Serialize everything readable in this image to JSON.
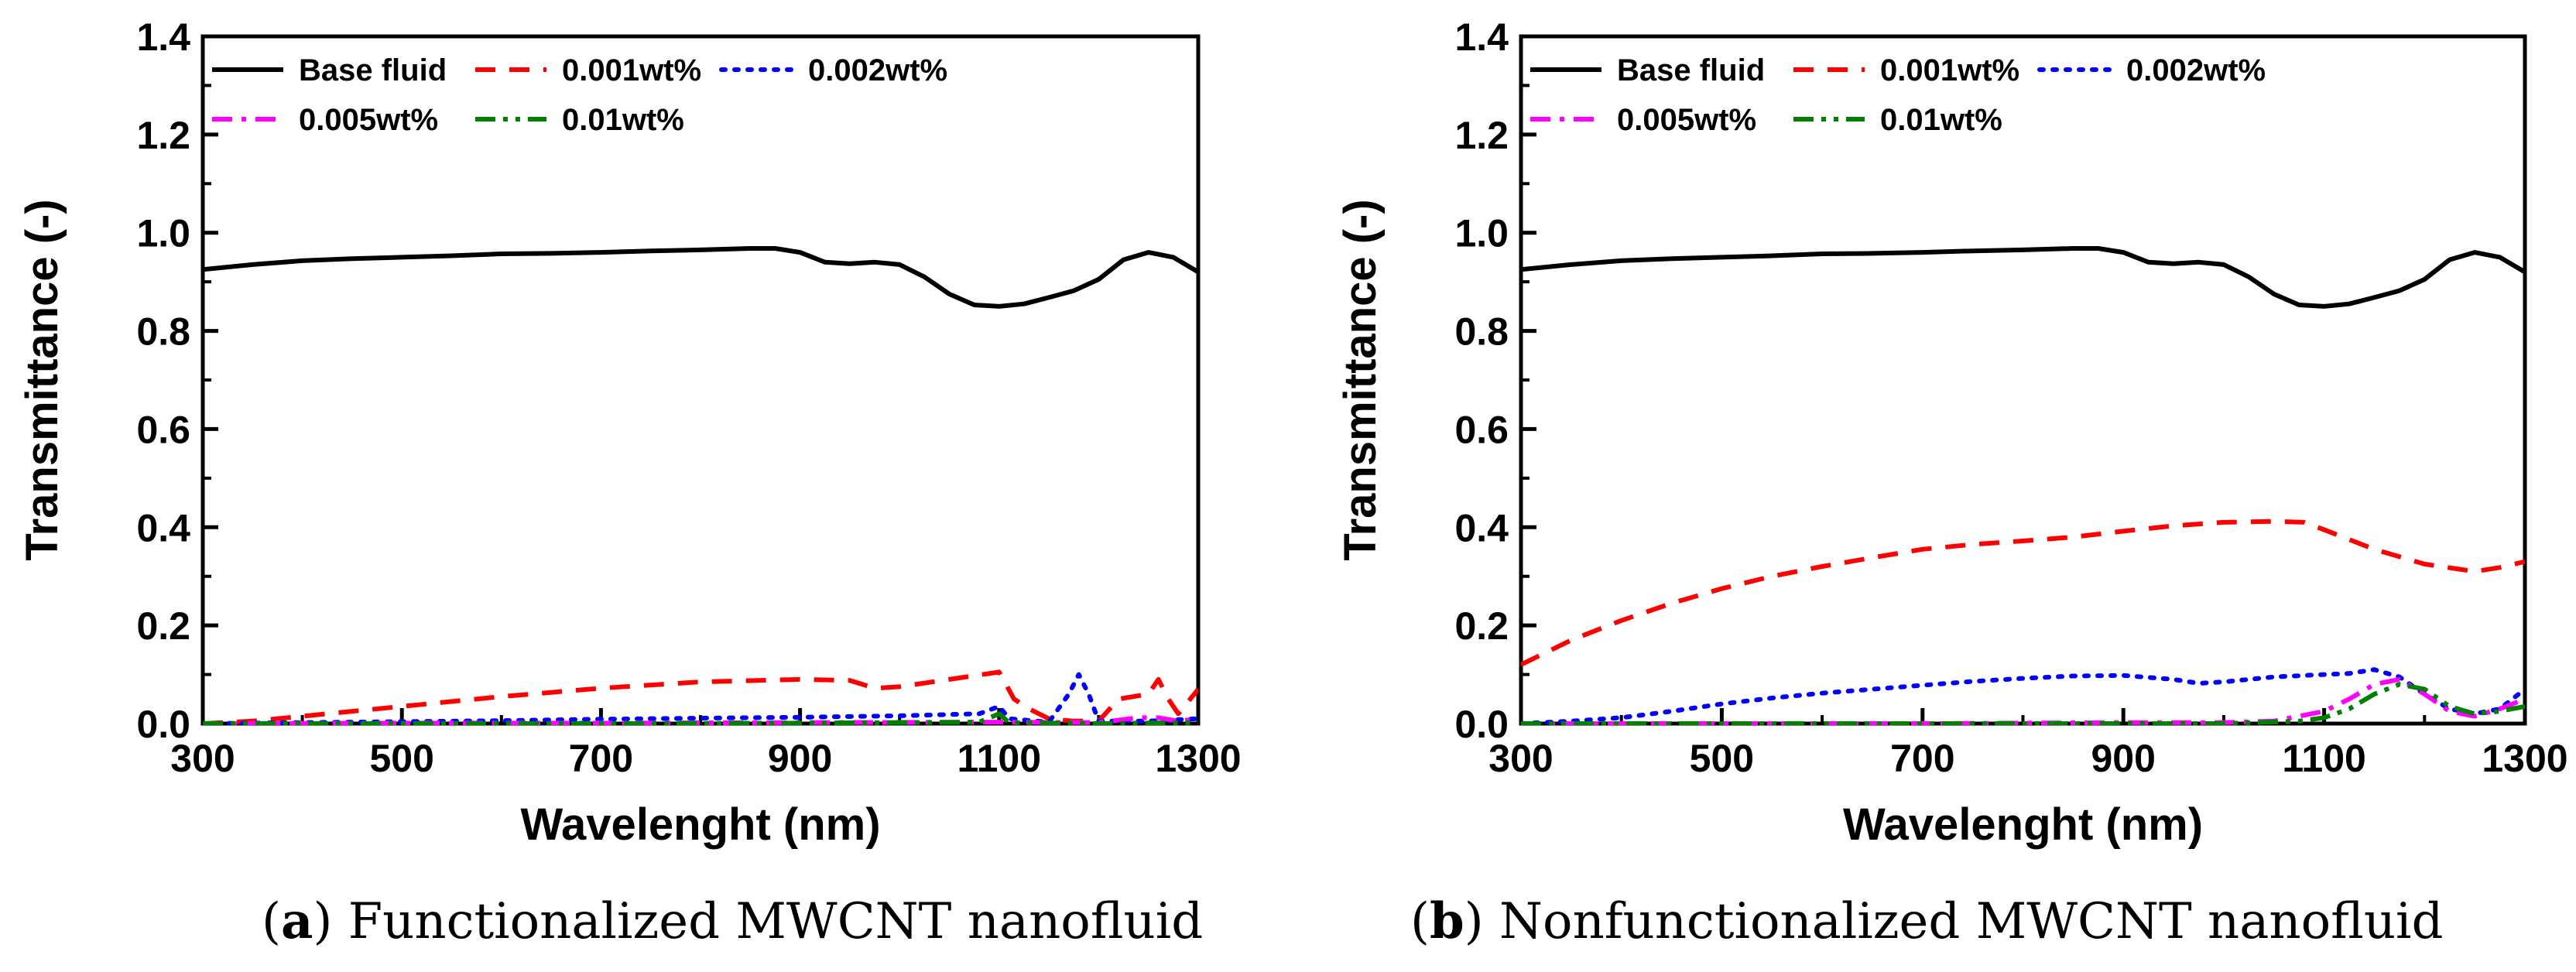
{
  "chart_data": [
    {
      "type": "line",
      "panel_letter": "a",
      "caption": "Functionalized MWCNT nanofluid",
      "xlabel": "Wavelenght (nm)",
      "ylabel": "Transmittance (-)",
      "xlim": [
        300,
        1300
      ],
      "ylim": [
        0,
        1.4
      ],
      "xticks": [
        "300",
        "500",
        "700",
        "900",
        "1100",
        "1300"
      ],
      "yticks": [
        "0.0",
        "0.2",
        "0.4",
        "0.6",
        "0.8",
        "1.0",
        "1.2",
        "1.4"
      ],
      "legend_location": "top-left",
      "series": [
        {
          "name": "Base fluid",
          "color": "#000000",
          "dash": "solid",
          "x": [
            300,
            350,
            400,
            450,
            500,
            550,
            600,
            650,
            700,
            750,
            800,
            850,
            875,
            900,
            925,
            950,
            975,
            1000,
            1025,
            1050,
            1075,
            1100,
            1125,
            1150,
            1175,
            1200,
            1225,
            1250,
            1275,
            1300
          ],
          "y": [
            0.925,
            0.935,
            0.943,
            0.947,
            0.95,
            0.953,
            0.957,
            0.958,
            0.96,
            0.963,
            0.965,
            0.968,
            0.968,
            0.96,
            0.94,
            0.937,
            0.94,
            0.935,
            0.91,
            0.875,
            0.853,
            0.85,
            0.855,
            0.868,
            0.882,
            0.905,
            0.945,
            0.96,
            0.95,
            0.92
          ]
        },
        {
          "name": "0.001wt%",
          "color": "#ff0000",
          "dash": "dash",
          "x": [
            300,
            350,
            400,
            500,
            600,
            700,
            800,
            900,
            950,
            975,
            1000,
            1050,
            1100,
            1115,
            1130,
            1150,
            1175,
            1200,
            1220,
            1250,
            1260,
            1270,
            1280,
            1300
          ],
          "y": [
            0.0,
            0.005,
            0.015,
            0.035,
            0.055,
            0.072,
            0.085,
            0.09,
            0.088,
            0.072,
            0.075,
            0.09,
            0.105,
            0.05,
            0.03,
            0.01,
            0.005,
            0.005,
            0.05,
            0.06,
            0.09,
            0.05,
            0.02,
            0.07
          ]
        },
        {
          "name": "0.002wt%",
          "color": "#0000ff",
          "dash": "dot",
          "x": [
            300,
            400,
            500,
            600,
            700,
            800,
            900,
            1000,
            1080,
            1100,
            1110,
            1150,
            1170,
            1180,
            1190,
            1200,
            1250,
            1300
          ],
          "y": [
            0.0,
            0.002,
            0.004,
            0.006,
            0.009,
            0.011,
            0.013,
            0.016,
            0.02,
            0.035,
            0.01,
            0.003,
            0.06,
            0.1,
            0.06,
            0.005,
            0.005,
            0.01
          ]
        },
        {
          "name": "0.005wt%",
          "color": "#ff00ff",
          "dash": "dashdot",
          "x": [
            300,
            500,
            700,
            900,
            1100,
            1200,
            1240,
            1260,
            1280,
            1300
          ],
          "y": [
            0.0,
            0.001,
            0.001,
            0.002,
            0.003,
            0.002,
            0.012,
            0.012,
            0.005,
            0.01
          ]
        },
        {
          "name": "0.01wt%",
          "color": "#008000",
          "dash": "dashdotdot",
          "x": [
            300,
            500,
            700,
            900,
            1080,
            1100,
            1110,
            1200,
            1300
          ],
          "y": [
            0.0,
            0.0,
            0.0,
            0.001,
            0.003,
            0.02,
            0.002,
            0.0,
            0.002
          ]
        }
      ]
    },
    {
      "type": "line",
      "panel_letter": "b",
      "caption": "Nonfunctionalized MWCNT nanofluid",
      "xlabel": "Wavelenght (nm)",
      "ylabel": "Transmittance (-)",
      "xlim": [
        300,
        1300
      ],
      "ylim": [
        0,
        1.4
      ],
      "xticks": [
        "300",
        "500",
        "700",
        "900",
        "1100",
        "1300"
      ],
      "yticks": [
        "0.0",
        "0.2",
        "0.4",
        "0.6",
        "0.8",
        "1.0",
        "1.2",
        "1.4"
      ],
      "legend_location": "top-left",
      "series": [
        {
          "name": "Base fluid",
          "color": "#000000",
          "dash": "solid",
          "x": [
            300,
            350,
            400,
            450,
            500,
            550,
            600,
            650,
            700,
            750,
            800,
            850,
            875,
            900,
            925,
            950,
            975,
            1000,
            1025,
            1050,
            1075,
            1100,
            1125,
            1150,
            1175,
            1200,
            1225,
            1250,
            1275,
            1300
          ],
          "y": [
            0.925,
            0.935,
            0.943,
            0.947,
            0.95,
            0.953,
            0.957,
            0.958,
            0.96,
            0.963,
            0.965,
            0.968,
            0.968,
            0.96,
            0.94,
            0.937,
            0.94,
            0.935,
            0.91,
            0.875,
            0.853,
            0.85,
            0.855,
            0.868,
            0.882,
            0.905,
            0.945,
            0.96,
            0.95,
            0.92
          ]
        },
        {
          "name": "0.001wt%",
          "color": "#ff0000",
          "dash": "dash",
          "x": [
            300,
            350,
            400,
            450,
            500,
            550,
            600,
            650,
            700,
            750,
            800,
            850,
            900,
            950,
            1000,
            1050,
            1080,
            1100,
            1150,
            1200,
            1250,
            1275,
            1300
          ],
          "y": [
            0.12,
            0.17,
            0.21,
            0.245,
            0.275,
            0.3,
            0.32,
            0.338,
            0.355,
            0.365,
            0.372,
            0.38,
            0.392,
            0.403,
            0.41,
            0.412,
            0.41,
            0.395,
            0.355,
            0.325,
            0.31,
            0.318,
            0.33
          ]
        },
        {
          "name": "0.002wt%",
          "color": "#0000ff",
          "dash": "dot",
          "x": [
            300,
            350,
            400,
            450,
            500,
            550,
            600,
            650,
            700,
            750,
            800,
            850,
            900,
            950,
            975,
            1000,
            1050,
            1100,
            1125,
            1150,
            1175,
            1200,
            1225,
            1250,
            1275,
            1300
          ],
          "y": [
            0.0,
            0.005,
            0.012,
            0.025,
            0.04,
            0.052,
            0.062,
            0.07,
            0.078,
            0.086,
            0.092,
            0.097,
            0.098,
            0.09,
            0.082,
            0.085,
            0.095,
            0.1,
            0.102,
            0.11,
            0.095,
            0.06,
            0.03,
            0.02,
            0.03,
            0.07
          ]
        },
        {
          "name": "0.005wt%",
          "color": "#ff00ff",
          "dash": "dashdot",
          "x": [
            300,
            500,
            700,
            900,
            1000,
            1050,
            1100,
            1125,
            1150,
            1175,
            1200,
            1225,
            1250,
            1275,
            1300
          ],
          "y": [
            0.0,
            0.0,
            0.0,
            0.002,
            0.002,
            0.005,
            0.025,
            0.05,
            0.08,
            0.09,
            0.06,
            0.025,
            0.015,
            0.03,
            0.05
          ]
        },
        {
          "name": "0.01wt%",
          "color": "#008000",
          "dash": "dashdotdot",
          "x": [
            300,
            500,
            700,
            900,
            1000,
            1075,
            1100,
            1125,
            1150,
            1175,
            1200,
            1225,
            1250,
            1275,
            1300
          ],
          "y": [
            0.0,
            0.0,
            0.0,
            0.0,
            0.0,
            0.005,
            0.012,
            0.03,
            0.06,
            0.08,
            0.07,
            0.035,
            0.02,
            0.025,
            0.035
          ]
        }
      ]
    }
  ]
}
